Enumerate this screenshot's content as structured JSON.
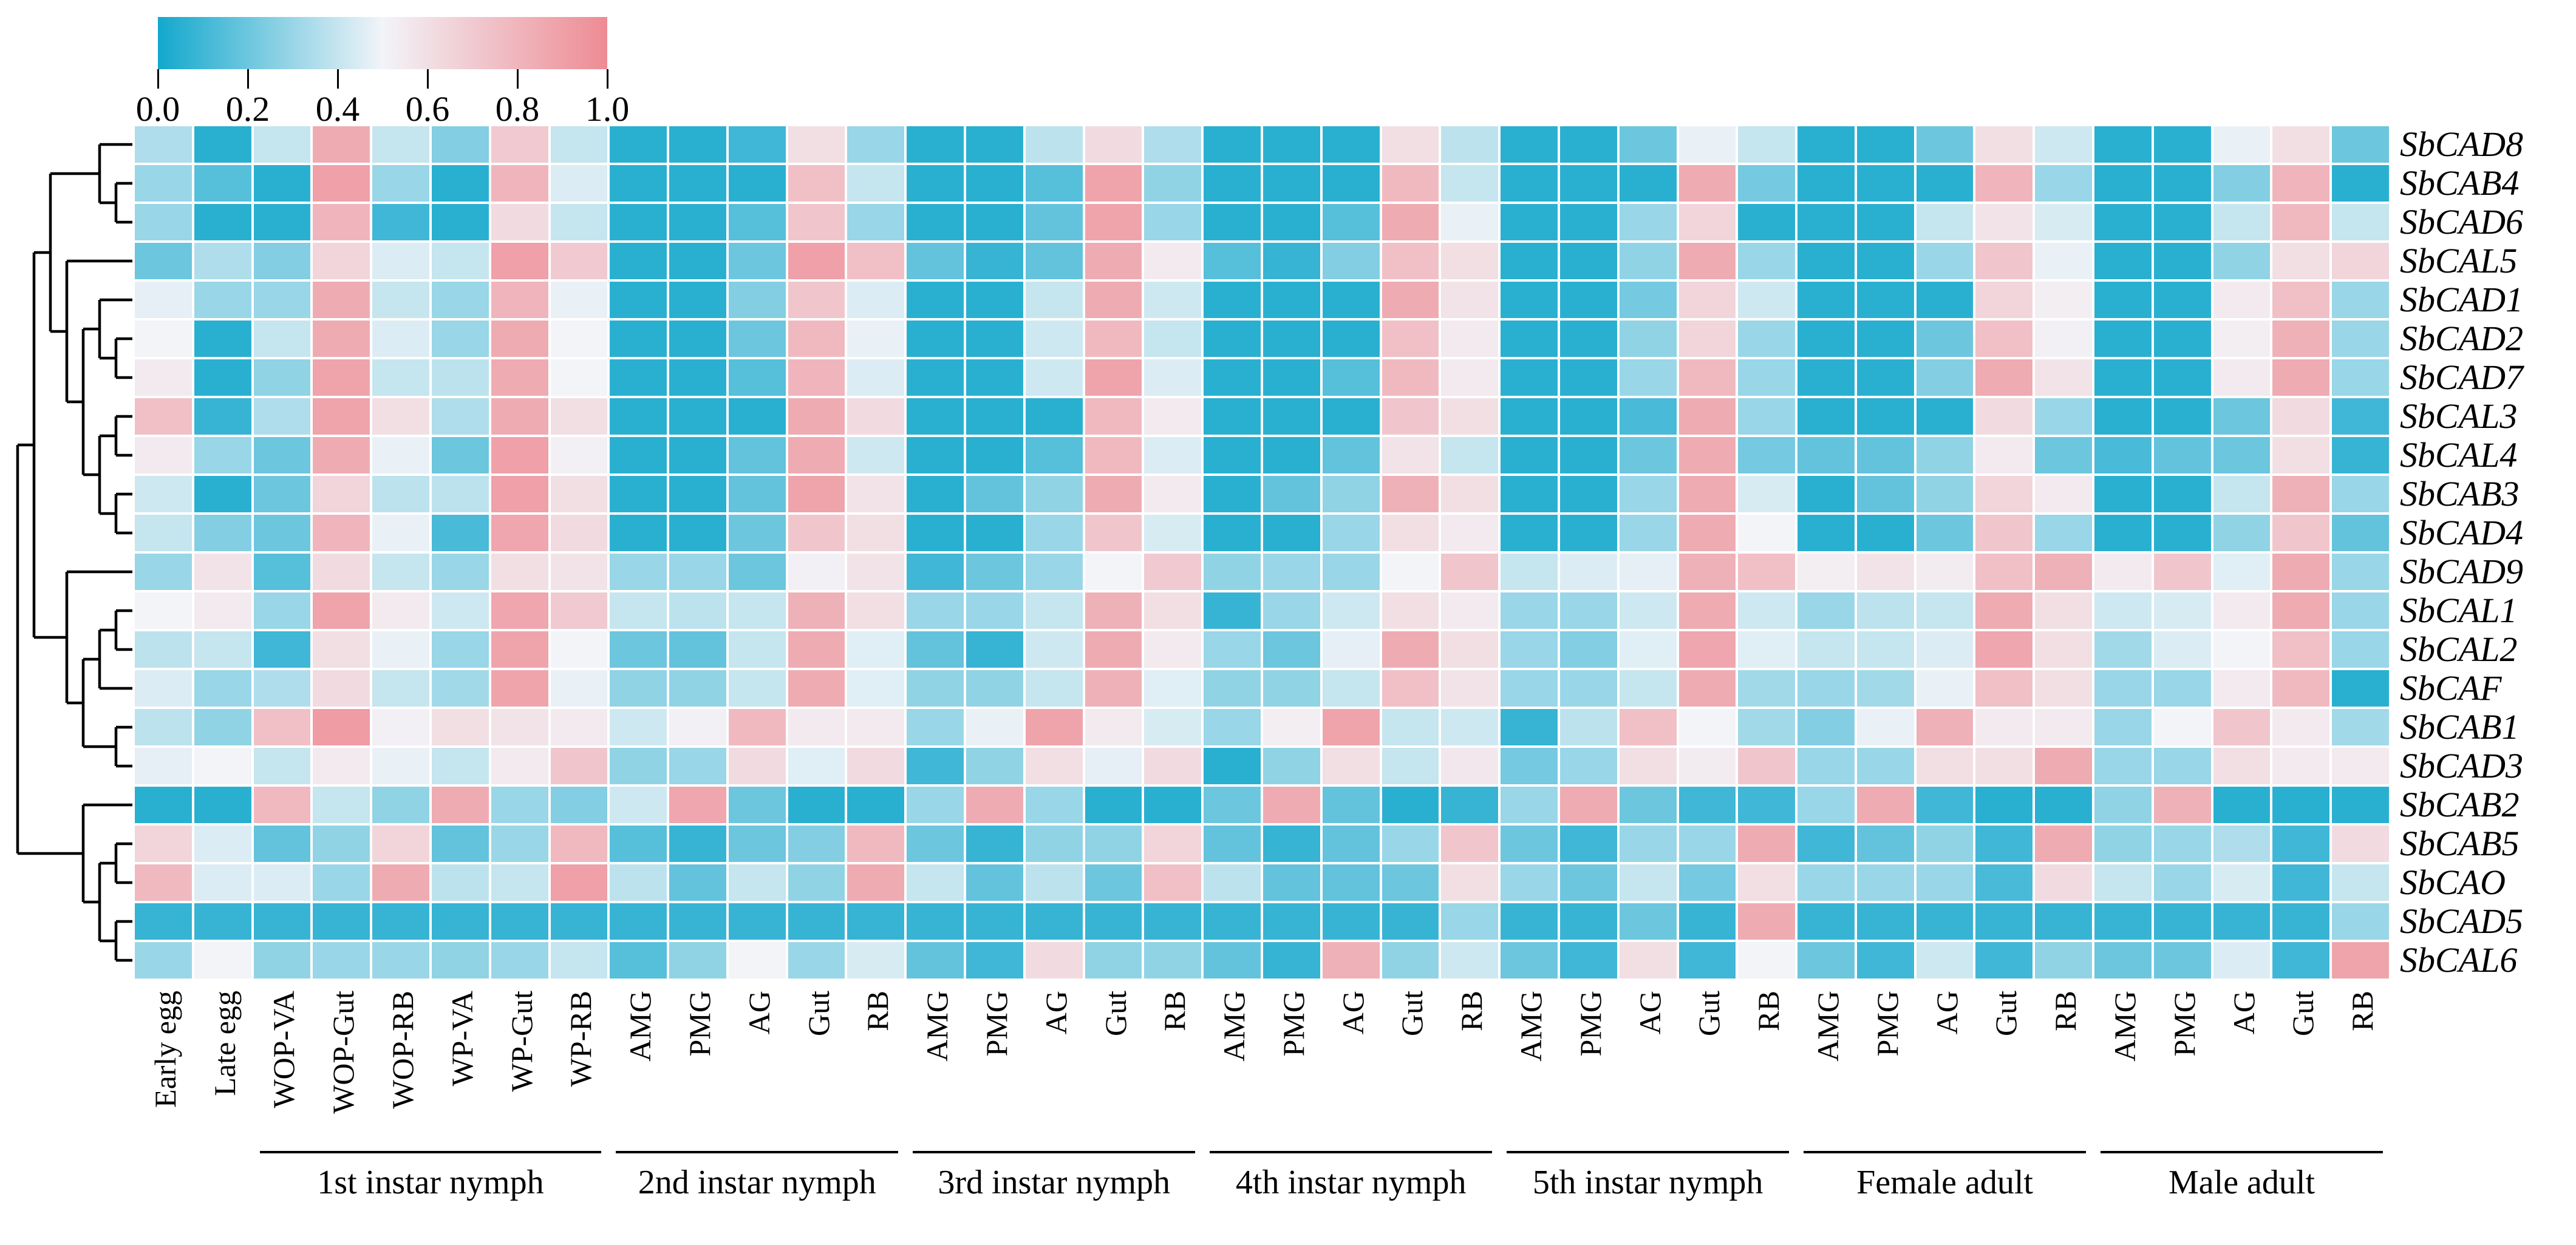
{
  "chart_data": {
    "type": "heatmap",
    "title": "",
    "legend": {
      "min": 0.0,
      "max": 1.0,
      "tick_labels": [
        "0.0",
        "0.2",
        "0.4",
        "0.6",
        "0.8",
        "1.0"
      ],
      "color_low": "#13A8CD",
      "color_mid": "#F2F4F8",
      "color_high": "#EE8B94",
      "position": "top-left"
    },
    "rows": [
      "SbCAD8",
      "SbCAB4",
      "SbCAD6",
      "SbCAL5",
      "SbCAD1",
      "SbCAD2",
      "SbCAD7",
      "SbCAL3",
      "SbCAL4",
      "SbCAB3",
      "SbCAD4",
      "SbCAD9",
      "SbCAL1",
      "SbCAL2",
      "SbCAF",
      "SbCAB1",
      "SbCAD3",
      "SbCAB2",
      "SbCAB5",
      "SbCAO",
      "SbCAD5",
      "SbCAL6"
    ],
    "columns": [
      "Early egg",
      "Late egg",
      "WOP-VA",
      "WOP-Gut",
      "WOP-RB",
      "WP-VA",
      "WP-Gut",
      "WP-RB",
      "AMG",
      "PMG",
      "AG",
      "Gut",
      "RB",
      "AMG",
      "PMG",
      "AG",
      "Gut",
      "RB",
      "AMG",
      "PMG",
      "AG",
      "Gut",
      "RB",
      "AMG",
      "PMG",
      "AG",
      "Gut",
      "RB",
      "AMG",
      "PMG",
      "AG",
      "Gut",
      "RB",
      "AMG",
      "PMG",
      "AG",
      "Gut",
      "RB"
    ],
    "column_groups": [
      {
        "label": "1st instar nymph",
        "start": 2,
        "end": 7
      },
      {
        "label": "2nd instar nymph",
        "start": 8,
        "end": 12
      },
      {
        "label": "3rd instar nymph",
        "start": 13,
        "end": 17
      },
      {
        "label": "4th instar nymph",
        "start": 18,
        "end": 22
      },
      {
        "label": "5th instar nymph",
        "start": 23,
        "end": 27
      },
      {
        "label": "Female adult",
        "start": 28,
        "end": 32
      },
      {
        "label": "Male adult",
        "start": 33,
        "end": 37
      }
    ],
    "values": [
      [
        0.35,
        0.05,
        0.4,
        0.85,
        0.4,
        0.25,
        0.7,
        0.4,
        0.05,
        0.05,
        0.1,
        0.6,
        0.3,
        0.05,
        0.05,
        0.38,
        0.62,
        0.35,
        0.05,
        0.05,
        0.05,
        0.6,
        0.38,
        0.05,
        0.05,
        0.2,
        0.48,
        0.4,
        0.05,
        0.05,
        0.2,
        0.6,
        0.42,
        0.05,
        0.05,
        0.48,
        0.6,
        0.2
      ],
      [
        0.3,
        0.15,
        0.05,
        0.9,
        0.3,
        0.05,
        0.8,
        0.45,
        0.05,
        0.05,
        0.05,
        0.75,
        0.4,
        0.05,
        0.05,
        0.15,
        0.88,
        0.28,
        0.05,
        0.05,
        0.05,
        0.78,
        0.4,
        0.05,
        0.05,
        0.05,
        0.85,
        0.22,
        0.05,
        0.05,
        0.05,
        0.8,
        0.3,
        0.05,
        0.05,
        0.25,
        0.8,
        0.05
      ],
      [
        0.3,
        0.05,
        0.05,
        0.8,
        0.1,
        0.05,
        0.62,
        0.4,
        0.05,
        0.05,
        0.15,
        0.72,
        0.3,
        0.05,
        0.05,
        0.18,
        0.88,
        0.3,
        0.05,
        0.05,
        0.15,
        0.85,
        0.48,
        0.05,
        0.05,
        0.3,
        0.65,
        0.05,
        0.05,
        0.05,
        0.4,
        0.58,
        0.44,
        0.05,
        0.05,
        0.4,
        0.78,
        0.4
      ],
      [
        0.2,
        0.35,
        0.25,
        0.65,
        0.45,
        0.4,
        0.9,
        0.7,
        0.05,
        0.05,
        0.2,
        0.9,
        0.75,
        0.18,
        0.08,
        0.18,
        0.85,
        0.55,
        0.15,
        0.08,
        0.25,
        0.75,
        0.6,
        0.05,
        0.05,
        0.28,
        0.85,
        0.3,
        0.05,
        0.05,
        0.3,
        0.72,
        0.48,
        0.05,
        0.05,
        0.28,
        0.6,
        0.65
      ],
      [
        0.47,
        0.3,
        0.3,
        0.85,
        0.4,
        0.3,
        0.8,
        0.48,
        0.05,
        0.05,
        0.25,
        0.72,
        0.45,
        0.05,
        0.05,
        0.4,
        0.85,
        0.42,
        0.05,
        0.05,
        0.05,
        0.85,
        0.58,
        0.05,
        0.05,
        0.22,
        0.65,
        0.42,
        0.05,
        0.05,
        0.05,
        0.65,
        0.53,
        0.05,
        0.05,
        0.55,
        0.75,
        0.3
      ],
      [
        0.5,
        0.05,
        0.4,
        0.85,
        0.45,
        0.3,
        0.85,
        0.5,
        0.05,
        0.05,
        0.2,
        0.78,
        0.48,
        0.05,
        0.05,
        0.42,
        0.78,
        0.4,
        0.05,
        0.05,
        0.05,
        0.75,
        0.55,
        0.05,
        0.05,
        0.28,
        0.65,
        0.3,
        0.05,
        0.05,
        0.2,
        0.75,
        0.52,
        0.05,
        0.05,
        0.53,
        0.82,
        0.3
      ],
      [
        0.55,
        0.05,
        0.28,
        0.88,
        0.4,
        0.38,
        0.85,
        0.5,
        0.05,
        0.05,
        0.15,
        0.8,
        0.45,
        0.05,
        0.05,
        0.42,
        0.88,
        0.45,
        0.05,
        0.05,
        0.15,
        0.78,
        0.55,
        0.05,
        0.05,
        0.3,
        0.78,
        0.3,
        0.05,
        0.05,
        0.25,
        0.85,
        0.58,
        0.05,
        0.05,
        0.55,
        0.85,
        0.3
      ],
      [
        0.75,
        0.08,
        0.35,
        0.88,
        0.6,
        0.35,
        0.85,
        0.6,
        0.05,
        0.05,
        0.05,
        0.85,
        0.62,
        0.05,
        0.05,
        0.05,
        0.78,
        0.55,
        0.05,
        0.05,
        0.05,
        0.72,
        0.6,
        0.05,
        0.05,
        0.12,
        0.85,
        0.3,
        0.05,
        0.05,
        0.05,
        0.62,
        0.3,
        0.05,
        0.05,
        0.2,
        0.62,
        0.1
      ],
      [
        0.55,
        0.3,
        0.2,
        0.85,
        0.48,
        0.2,
        0.9,
        0.52,
        0.05,
        0.05,
        0.18,
        0.85,
        0.42,
        0.05,
        0.05,
        0.15,
        0.78,
        0.45,
        0.05,
        0.05,
        0.18,
        0.58,
        0.4,
        0.05,
        0.05,
        0.2,
        0.85,
        0.22,
        0.18,
        0.18,
        0.28,
        0.55,
        0.2,
        0.12,
        0.18,
        0.2,
        0.6,
        0.08
      ],
      [
        0.42,
        0.05,
        0.2,
        0.65,
        0.38,
        0.38,
        0.9,
        0.6,
        0.05,
        0.05,
        0.18,
        0.88,
        0.58,
        0.05,
        0.18,
        0.28,
        0.85,
        0.55,
        0.05,
        0.18,
        0.28,
        0.82,
        0.6,
        0.05,
        0.05,
        0.3,
        0.85,
        0.44,
        0.05,
        0.18,
        0.28,
        0.65,
        0.55,
        0.05,
        0.05,
        0.4,
        0.82,
        0.3
      ],
      [
        0.4,
        0.25,
        0.2,
        0.8,
        0.48,
        0.12,
        0.87,
        0.62,
        0.05,
        0.05,
        0.2,
        0.72,
        0.6,
        0.05,
        0.05,
        0.3,
        0.72,
        0.44,
        0.05,
        0.05,
        0.3,
        0.6,
        0.55,
        0.05,
        0.05,
        0.3,
        0.85,
        0.5,
        0.05,
        0.05,
        0.2,
        0.72,
        0.3,
        0.05,
        0.05,
        0.28,
        0.72,
        0.18
      ],
      [
        0.3,
        0.58,
        0.15,
        0.62,
        0.4,
        0.3,
        0.6,
        0.58,
        0.3,
        0.3,
        0.2,
        0.52,
        0.58,
        0.1,
        0.2,
        0.3,
        0.5,
        0.7,
        0.28,
        0.3,
        0.3,
        0.5,
        0.72,
        0.4,
        0.45,
        0.47,
        0.82,
        0.75,
        0.53,
        0.58,
        0.54,
        0.75,
        0.82,
        0.55,
        0.72,
        0.46,
        0.85,
        0.3
      ],
      [
        0.5,
        0.55,
        0.3,
        0.88,
        0.55,
        0.42,
        0.87,
        0.7,
        0.4,
        0.38,
        0.4,
        0.82,
        0.6,
        0.3,
        0.3,
        0.4,
        0.82,
        0.6,
        0.08,
        0.3,
        0.42,
        0.6,
        0.55,
        0.3,
        0.3,
        0.42,
        0.85,
        0.42,
        0.3,
        0.38,
        0.4,
        0.85,
        0.6,
        0.42,
        0.44,
        0.55,
        0.85,
        0.3
      ],
      [
        0.38,
        0.4,
        0.1,
        0.6,
        0.48,
        0.3,
        0.88,
        0.5,
        0.2,
        0.18,
        0.4,
        0.85,
        0.46,
        0.18,
        0.08,
        0.42,
        0.85,
        0.55,
        0.3,
        0.2,
        0.47,
        0.85,
        0.6,
        0.3,
        0.25,
        0.46,
        0.87,
        0.46,
        0.4,
        0.4,
        0.45,
        0.87,
        0.6,
        0.32,
        0.45,
        0.5,
        0.75,
        0.3
      ],
      [
        0.45,
        0.3,
        0.35,
        0.62,
        0.4,
        0.32,
        0.88,
        0.48,
        0.28,
        0.28,
        0.4,
        0.85,
        0.46,
        0.28,
        0.28,
        0.4,
        0.82,
        0.46,
        0.28,
        0.28,
        0.4,
        0.75,
        0.58,
        0.3,
        0.3,
        0.4,
        0.85,
        0.32,
        0.3,
        0.32,
        0.48,
        0.75,
        0.6,
        0.3,
        0.3,
        0.55,
        0.78,
        0.05
      ],
      [
        0.38,
        0.28,
        0.75,
        0.92,
        0.52,
        0.6,
        0.58,
        0.55,
        0.42,
        0.52,
        0.78,
        0.55,
        0.55,
        0.3,
        0.48,
        0.88,
        0.55,
        0.44,
        0.3,
        0.53,
        0.88,
        0.4,
        0.42,
        0.08,
        0.38,
        0.75,
        0.5,
        0.32,
        0.25,
        0.48,
        0.82,
        0.55,
        0.55,
        0.3,
        0.5,
        0.72,
        0.55,
        0.32
      ],
      [
        0.47,
        0.5,
        0.4,
        0.55,
        0.48,
        0.4,
        0.55,
        0.72,
        0.28,
        0.3,
        0.62,
        0.46,
        0.62,
        0.1,
        0.28,
        0.6,
        0.47,
        0.62,
        0.05,
        0.28,
        0.6,
        0.4,
        0.56,
        0.22,
        0.3,
        0.6,
        0.54,
        0.72,
        0.3,
        0.3,
        0.6,
        0.6,
        0.85,
        0.3,
        0.3,
        0.6,
        0.55,
        0.55
      ],
      [
        0.05,
        0.05,
        0.78,
        0.4,
        0.28,
        0.85,
        0.3,
        0.25,
        0.42,
        0.87,
        0.2,
        0.05,
        0.05,
        0.3,
        0.85,
        0.3,
        0.05,
        0.05,
        0.2,
        0.85,
        0.18,
        0.05,
        0.08,
        0.3,
        0.85,
        0.2,
        0.1,
        0.1,
        0.3,
        0.85,
        0.1,
        0.05,
        0.05,
        0.28,
        0.82,
        0.05,
        0.05,
        0.05
      ],
      [
        0.65,
        0.45,
        0.18,
        0.28,
        0.65,
        0.18,
        0.3,
        0.78,
        0.15,
        0.08,
        0.2,
        0.25,
        0.78,
        0.2,
        0.08,
        0.28,
        0.28,
        0.65,
        0.18,
        0.08,
        0.18,
        0.3,
        0.72,
        0.2,
        0.1,
        0.3,
        0.3,
        0.85,
        0.1,
        0.18,
        0.28,
        0.1,
        0.85,
        0.28,
        0.3,
        0.35,
        0.1,
        0.62
      ],
      [
        0.78,
        0.45,
        0.45,
        0.3,
        0.85,
        0.38,
        0.4,
        0.9,
        0.38,
        0.18,
        0.4,
        0.28,
        0.85,
        0.4,
        0.18,
        0.38,
        0.2,
        0.75,
        0.38,
        0.18,
        0.18,
        0.2,
        0.6,
        0.3,
        0.2,
        0.4,
        0.22,
        0.6,
        0.3,
        0.3,
        0.3,
        0.12,
        0.62,
        0.4,
        0.3,
        0.44,
        0.1,
        0.4
      ],
      [
        0.08,
        0.08,
        0.08,
        0.08,
        0.08,
        0.08,
        0.08,
        0.08,
        0.08,
        0.08,
        0.08,
        0.08,
        0.08,
        0.08,
        0.08,
        0.08,
        0.08,
        0.08,
        0.08,
        0.08,
        0.08,
        0.08,
        0.3,
        0.08,
        0.08,
        0.2,
        0.08,
        0.85,
        0.08,
        0.08,
        0.08,
        0.08,
        0.08,
        0.08,
        0.08,
        0.08,
        0.08,
        0.3
      ],
      [
        0.3,
        0.5,
        0.28,
        0.3,
        0.3,
        0.28,
        0.3,
        0.4,
        0.15,
        0.28,
        0.5,
        0.3,
        0.44,
        0.18,
        0.1,
        0.62,
        0.28,
        0.28,
        0.18,
        0.08,
        0.82,
        0.28,
        0.42,
        0.2,
        0.1,
        0.6,
        0.1,
        0.5,
        0.2,
        0.1,
        0.42,
        0.1,
        0.28,
        0.2,
        0.2,
        0.45,
        0.1,
        0.88
      ]
    ],
    "row_dendrogram": [
      [
        [
          [
            0,
            [
              1,
              2
            ]
          ],
          [
            3,
            [
              [
                4,
                [
                  5,
                  6
                ]
              ],
              [
                [
                  7,
                  8
                ],
                [
                  9,
                  10
                ]
              ]
            ]
          ]
        ],
        [
          11,
          [
            [
              [
                12,
                13
              ],
              14
            ],
            [
              15,
              16
            ]
          ]
        ]
      ],
      [
        17,
        [
          [
            18,
            19
          ],
          [
            20,
            21
          ]
        ]
      ]
    ],
    "layout_hints": {
      "grid": false,
      "row_labels": "right-italic",
      "col_labels": "rotated-90",
      "dendrogram": "left"
    }
  }
}
